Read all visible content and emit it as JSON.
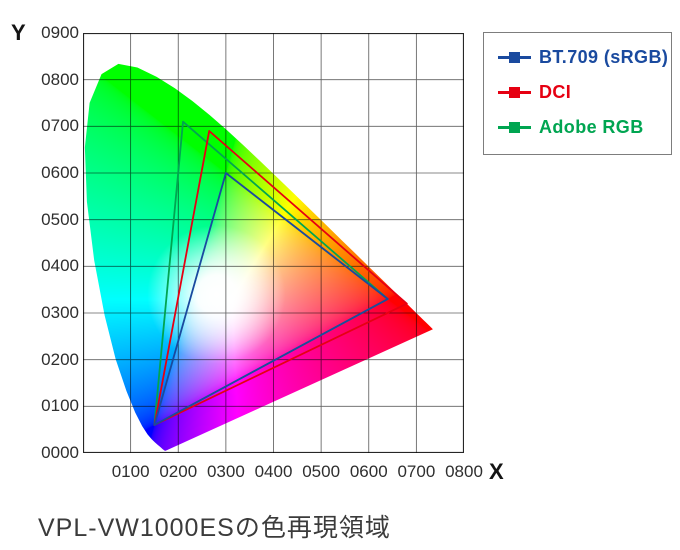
{
  "caption": "VPL-VW1000ESの色再現領域",
  "chart_data": {
    "type": "line",
    "subtype": "cie-1931-xy-chromaticity-gamut-comparison",
    "title": "VPL-VW1000ESの色再現領域",
    "xlabel": "X",
    "ylabel": "Y",
    "xlim": [
      0,
      0.8
    ],
    "ylim": [
      0,
      0.9
    ],
    "x_tick_labels": [
      "0100",
      "0200",
      "0300",
      "0400",
      "0500",
      "0600",
      "0700",
      "0800"
    ],
    "y_tick_labels": [
      "0900",
      "0800",
      "0700",
      "0600",
      "0500",
      "0400",
      "0300",
      "0200",
      "0100",
      "0000"
    ],
    "grid": true,
    "legend_position": "outside-top-right",
    "background": "cie-1931-spectral-locus-horseshoe-filled-with-spectrum-colors",
    "white_point_glow": [
      0.28,
      0.34
    ],
    "series": [
      {
        "name": "BT.709 (sRGB)",
        "color": "#1a4a9f",
        "closed": true,
        "points": [
          [
            0.64,
            0.33
          ],
          [
            0.3,
            0.6
          ],
          [
            0.15,
            0.06
          ]
        ]
      },
      {
        "name": "DCI",
        "color": "#e60012",
        "closed": true,
        "points": [
          [
            0.68,
            0.32
          ],
          [
            0.265,
            0.69
          ],
          [
            0.15,
            0.06
          ]
        ]
      },
      {
        "name": "Adobe RGB",
        "color": "#00a551",
        "closed": true,
        "points": [
          [
            0.64,
            0.33
          ],
          [
            0.21,
            0.71
          ],
          [
            0.15,
            0.06
          ]
        ]
      }
    ]
  }
}
